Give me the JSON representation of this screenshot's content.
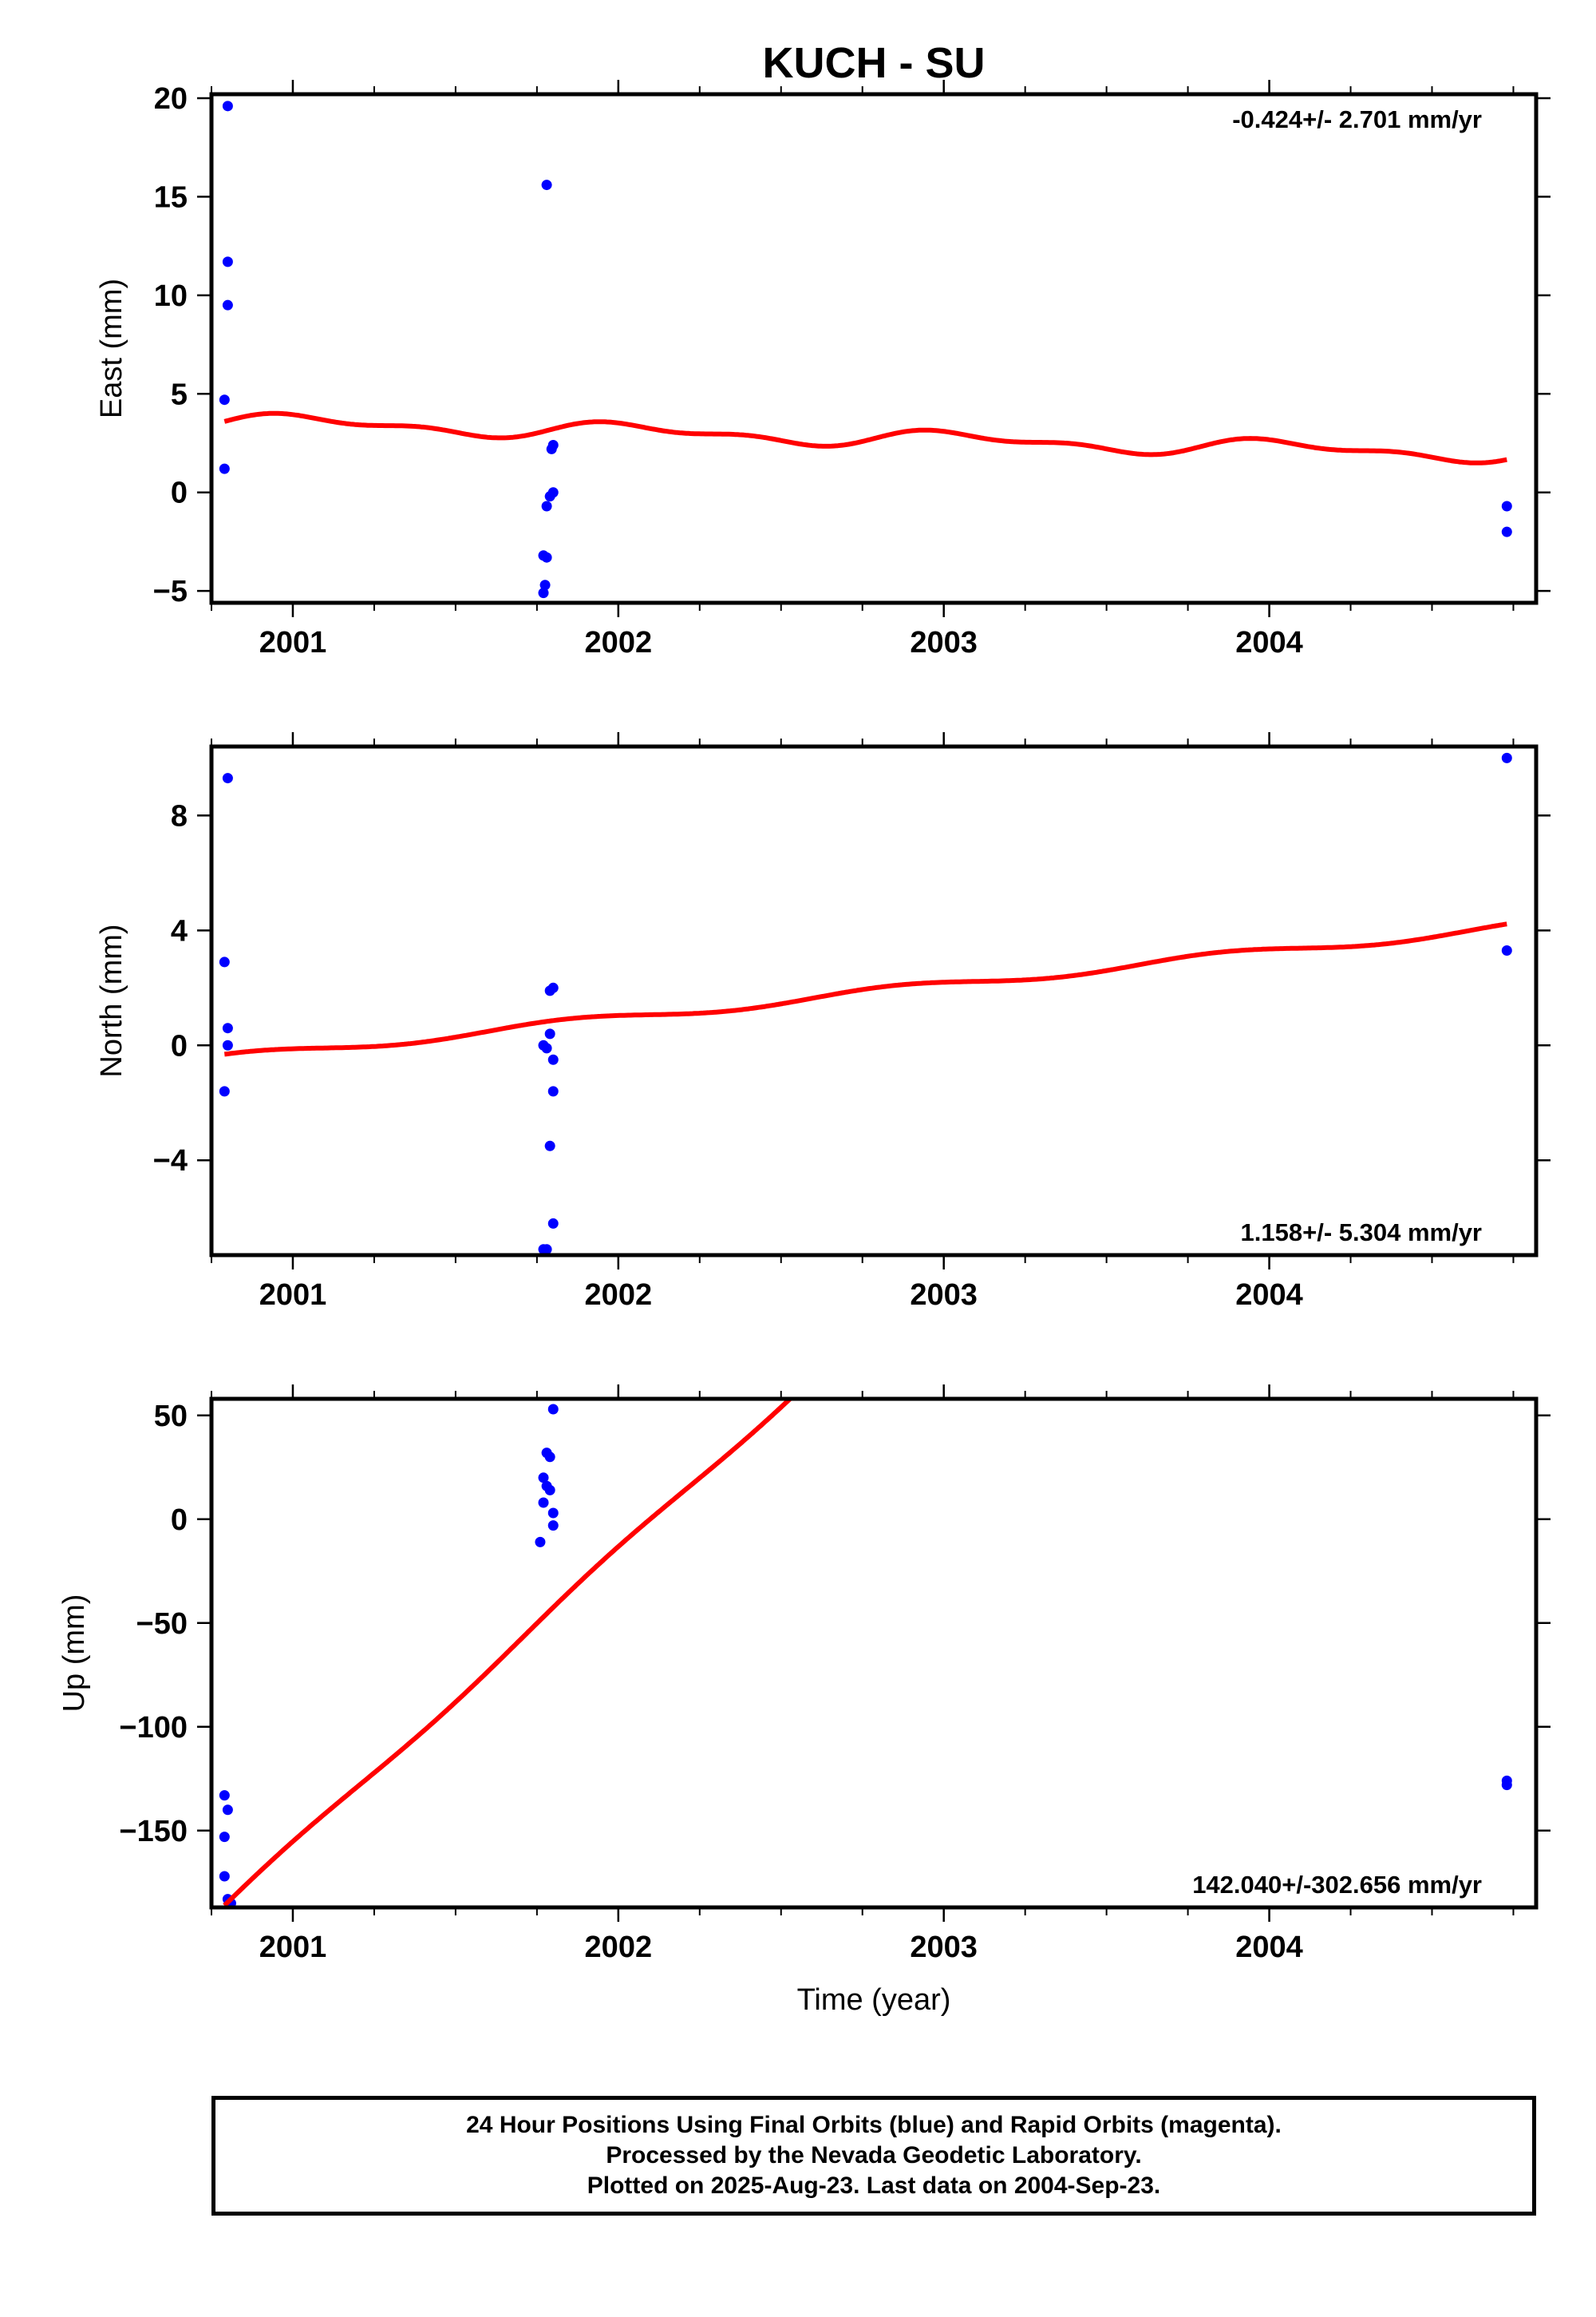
{
  "title": "KUCH - SU",
  "xlabel": "Time (year)",
  "footer": {
    "line1": "24 Hour Positions Using Final Orbits (blue) and Rapid Orbits (magenta).",
    "line2": "Processed by the Nevada Geodetic Laboratory.",
    "line3": "Plotted on 2025-Aug-23. Last data on 2004-Sep-23."
  },
  "colors": {
    "data": "#0000ff",
    "fit": "#ff0000",
    "frame": "#000000"
  },
  "chart_data": [
    {
      "type": "scatter",
      "ylabel": "East (mm)",
      "rate_label": "-0.424+/- 2.701 mm/yr",
      "xlim": [
        2000.75,
        2004.82
      ],
      "ylim": [
        -5.6,
        20.2
      ],
      "x_ticks": [
        2001,
        2002,
        2003,
        2004
      ],
      "x_tick_labels": [
        "2001",
        "2002",
        "2003",
        "2004"
      ],
      "y_ticks": [
        -5,
        0,
        5,
        10,
        15,
        20
      ],
      "y_tick_labels": [
        "−5",
        "0",
        "5",
        "10",
        "15",
        "20"
      ],
      "points": [
        [
          2000.8,
          19.6
        ],
        [
          2000.8,
          11.7
        ],
        [
          2000.8,
          9.5
        ],
        [
          2000.79,
          4.7
        ],
        [
          2000.79,
          1.2
        ],
        [
          2001.78,
          15.6
        ],
        [
          2001.8,
          2.4
        ],
        [
          2001.795,
          2.2
        ],
        [
          2001.8,
          0.0
        ],
        [
          2001.79,
          -0.2
        ],
        [
          2001.78,
          -0.7
        ],
        [
          2001.77,
          -3.2
        ],
        [
          2001.78,
          -3.3
        ],
        [
          2001.775,
          -4.7
        ],
        [
          2001.77,
          -5.1
        ],
        [
          2004.73,
          -0.7
        ],
        [
          2004.73,
          -2.0
        ]
      ],
      "fit": {
        "start": 2000.79,
        "end": 2004.73,
        "offset": 3.6,
        "rate": -0.424,
        "annual_amp": 0.35,
        "annual_phase": 0.0,
        "semi_amp": 0.2,
        "semi_phase": 0.0
      }
    },
    {
      "type": "scatter",
      "ylabel": "North (mm)",
      "rate_label": "1.158+/- 5.304 mm/yr",
      "xlim": [
        2000.75,
        2004.82
      ],
      "ylim": [
        -7.3,
        10.4
      ],
      "x_ticks": [
        2001,
        2002,
        2003,
        2004
      ],
      "x_tick_labels": [
        "2001",
        "2002",
        "2003",
        "2004"
      ],
      "y_ticks": [
        -4,
        0,
        4,
        8
      ],
      "y_tick_labels": [
        "−4",
        "0",
        "4",
        "8"
      ],
      "points": [
        [
          2000.8,
          9.3
        ],
        [
          2000.79,
          2.9
        ],
        [
          2000.8,
          0.6
        ],
        [
          2000.8,
          0.0
        ],
        [
          2000.79,
          -1.6
        ],
        [
          2001.8,
          2.0
        ],
        [
          2001.79,
          1.9
        ],
        [
          2001.79,
          0.4
        ],
        [
          2001.77,
          0.0
        ],
        [
          2001.78,
          -0.1
        ],
        [
          2001.8,
          -0.5
        ],
        [
          2001.8,
          -1.6
        ],
        [
          2001.79,
          -3.5
        ],
        [
          2001.8,
          -6.2
        ],
        [
          2001.77,
          -7.1
        ],
        [
          2001.78,
          -7.1
        ],
        [
          2004.73,
          10.0
        ],
        [
          2004.73,
          3.3
        ]
      ],
      "fit": {
        "start": 2000.79,
        "end": 2004.73,
        "offset": -0.45,
        "rate": 1.158,
        "annual_amp": 0.15,
        "annual_phase": 1.2,
        "semi_amp": 0.0,
        "semi_phase": 0.0
      }
    },
    {
      "type": "scatter",
      "ylabel": "Up (mm)",
      "rate_label": "142.040+/-302.656 mm/yr",
      "xlim": [
        2000.75,
        2004.82
      ],
      "ylim": [
        -187,
        58
      ],
      "x_ticks": [
        2001,
        2002,
        2003,
        2004
      ],
      "x_tick_labels": [
        "2001",
        "2002",
        "2003",
        "2004"
      ],
      "y_ticks": [
        -150,
        -100,
        -50,
        0,
        50
      ],
      "y_tick_labels": [
        "−150",
        "−100",
        "−50",
        "0",
        "50"
      ],
      "points": [
        [
          2000.79,
          -133
        ],
        [
          2000.8,
          -140
        ],
        [
          2000.79,
          -153
        ],
        [
          2000.79,
          -172
        ],
        [
          2000.8,
          -183
        ],
        [
          2000.81,
          -185
        ],
        [
          2001.8,
          53
        ],
        [
          2001.78,
          32
        ],
        [
          2001.79,
          30
        ],
        [
          2001.77,
          20
        ],
        [
          2001.78,
          16
        ],
        [
          2001.79,
          14
        ],
        [
          2001.77,
          8
        ],
        [
          2001.8,
          3
        ],
        [
          2001.8,
          -3
        ],
        [
          2001.76,
          -11
        ],
        [
          2004.73,
          -126
        ],
        [
          2004.73,
          -128
        ]
      ],
      "fit": {
        "start": 2000.79,
        "end": 2004.73,
        "offset": -187,
        "rate": 142.04,
        "annual_amp": 2.0,
        "annual_phase": 0.5,
        "semi_amp": 0.0,
        "semi_phase": 0.0
      }
    }
  ]
}
